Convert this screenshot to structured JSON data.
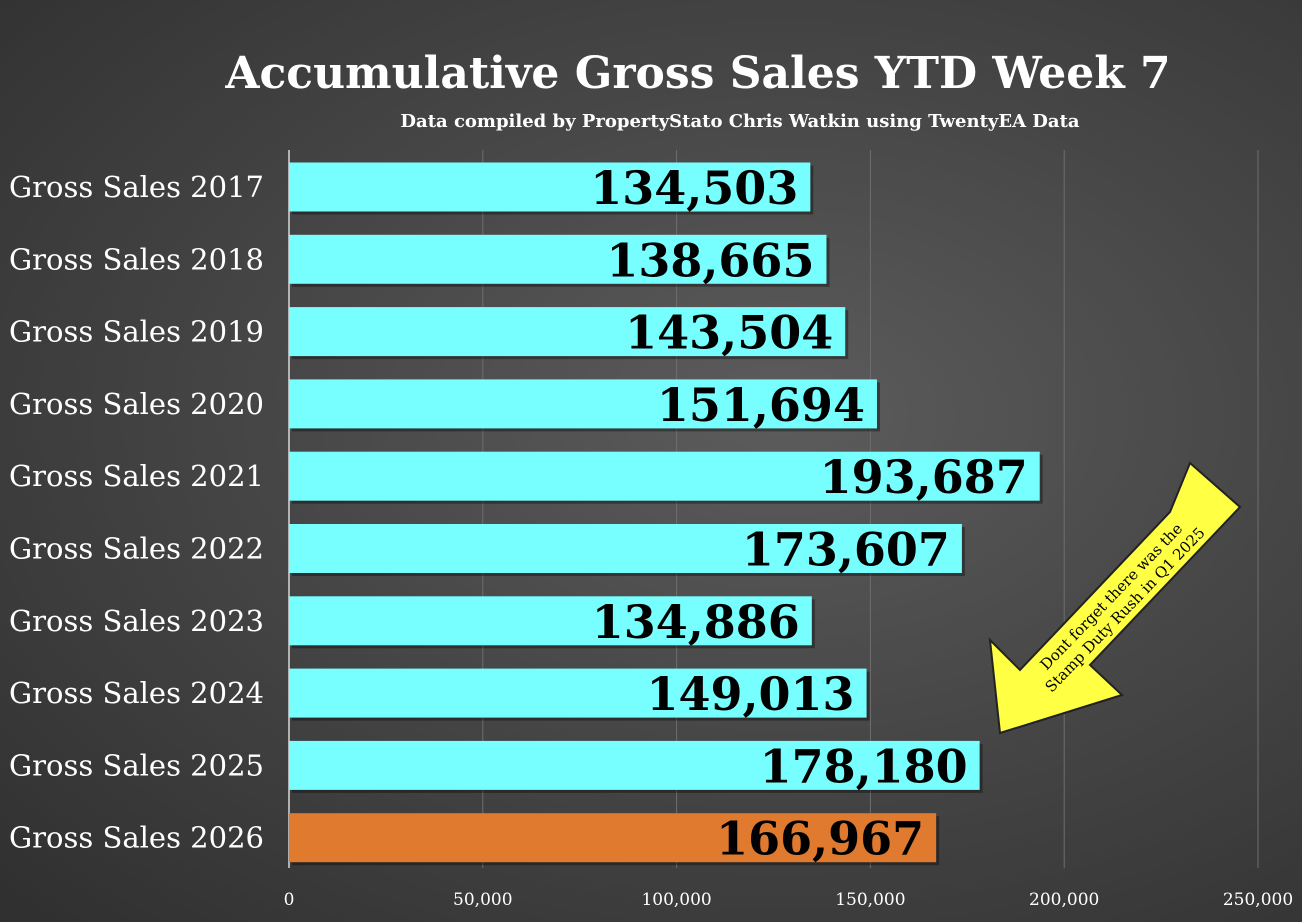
{
  "colors": {
    "bar_default": "#77ffff",
    "bar_highlight": "#e07a2f",
    "annotation_fill": "#ffff44"
  },
  "chart_data": {
    "type": "bar",
    "orientation": "horizontal",
    "title": "Accumulative Gross Sales YTD Week 7",
    "subtitle": "Data compiled by PropertyStato Chris Watkin using TwentyEA Data",
    "categories": [
      "Gross Sales 2017",
      "Gross Sales 2018",
      "Gross Sales 2019",
      "Gross Sales 2020",
      "Gross Sales 2021",
      "Gross Sales 2022",
      "Gross Sales 2023",
      "Gross Sales 2024",
      "Gross Sales 2025",
      "Gross Sales 2026"
    ],
    "values": [
      134503,
      138665,
      143504,
      151694,
      193687,
      173607,
      134886,
      149013,
      178180,
      166967
    ],
    "data_labels": [
      "134,503",
      "138,665",
      "143,504",
      "151,694",
      "193,687",
      "173,607",
      "134,886",
      "149,013",
      "178,180",
      "166,967"
    ],
    "highlight_index": 9,
    "xlim": [
      0,
      250000
    ],
    "x_ticks": [
      0,
      50000,
      100000,
      150000,
      200000,
      250000
    ],
    "x_tick_labels": [
      "0",
      "50,000",
      "100,000",
      "150,000",
      "200,000",
      "250,000"
    ],
    "grid": true,
    "legend": "none",
    "xlabel": "",
    "ylabel": ""
  },
  "annotation": {
    "line1": "Dont forget there was the",
    "line2": "Stamp Duty Rush in Q1 2025"
  }
}
